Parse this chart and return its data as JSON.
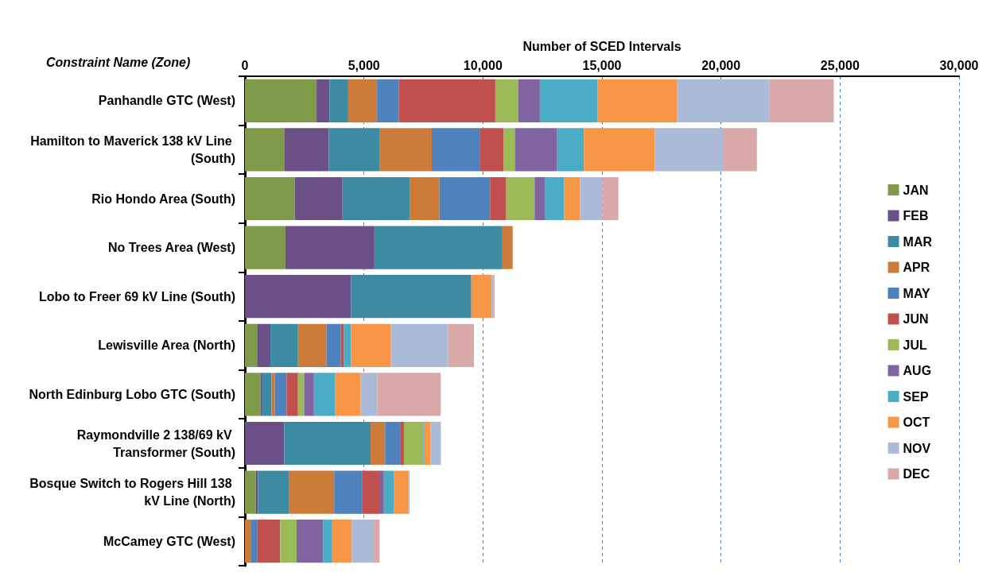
{
  "chart_data": {
    "type": "bar",
    "orientation": "horizontal",
    "stacked": true,
    "xlabel": "Number of SCED Intervals",
    "ylabel": "Constraint Name (Zone)",
    "categories": [
      "Panhandle GTC (West)",
      "Hamilton to Maverick 138 kV Line (South)",
      "Rio Hondo Area (South)",
      "No Trees Area (West)",
      "Lobo to Freer 69 kV Line (South)",
      "Lewisville Area (North)",
      "North Edinburg Lobo GTC (South)",
      "Raymondville 2 138/69 kV Transformer (South)",
      "Bosque Switch to Rogers Hill 138 kV Line (North)",
      "McCamey GTC (West)"
    ],
    "series": [
      {
        "name": "JAN",
        "color": "#7f9a48",
        "values": [
          3010,
          1650,
          2090,
          1700,
          0,
          510,
          650,
          0,
          460,
          0
        ]
      },
      {
        "name": "FEB",
        "color": "#6a5087",
        "values": [
          540,
          1870,
          2010,
          3740,
          4460,
          560,
          80,
          1650,
          90,
          0
        ]
      },
      {
        "name": "MAR",
        "color": "#3d8ba2",
        "values": [
          790,
          2130,
          2820,
          5380,
          5050,
          1160,
          390,
          3630,
          1290,
          0
        ]
      },
      {
        "name": "APR",
        "color": "#cd7b38",
        "values": [
          1210,
          2200,
          1250,
          430,
          0,
          1200,
          140,
          610,
          1910,
          240
        ]
      },
      {
        "name": "MAY",
        "color": "#4f81bd",
        "values": [
          920,
          2010,
          2130,
          0,
          0,
          600,
          490,
          630,
          1190,
          270
        ]
      },
      {
        "name": "JUN",
        "color": "#c0504d",
        "values": [
          4050,
          1000,
          680,
          0,
          0,
          130,
          480,
          160,
          740,
          970
        ]
      },
      {
        "name": "JUL",
        "color": "#9bbb59",
        "values": [
          970,
          480,
          1190,
          0,
          0,
          0,
          260,
          810,
          0,
          690
        ]
      },
      {
        "name": "AUG",
        "color": "#8064a2",
        "values": [
          900,
          1780,
          450,
          0,
          0,
          0,
          410,
          0,
          160,
          1110
        ]
      },
      {
        "name": "SEP",
        "color": "#4bacc6",
        "values": [
          2430,
          1120,
          790,
          0,
          0,
          300,
          880,
          50,
          430,
          390
        ]
      },
      {
        "name": "OCT",
        "color": "#f79646",
        "values": [
          3340,
          2980,
          670,
          0,
          850,
          1670,
          1080,
          250,
          580,
          820
        ]
      },
      {
        "name": "NOV",
        "color": "#aabad7",
        "values": [
          3880,
          2860,
          940,
          0,
          70,
          2400,
          700,
          440,
          70,
          890
        ]
      },
      {
        "name": "DEC",
        "color": "#d9a9a9",
        "values": [
          2700,
          1430,
          670,
          0,
          60,
          1090,
          2670,
          0,
          0,
          280
        ]
      }
    ],
    "xlim": [
      0,
      30000
    ],
    "xticks": [
      0,
      {
        "value": 5000,
        "label": "5,000"
      },
      {
        "value": 10000,
        "label": "10,000"
      },
      {
        "value": 15000,
        "label": "15,000"
      },
      {
        "value": 20000,
        "label": "20,000"
      },
      {
        "value": 25000,
        "label": "25,000"
      },
      {
        "value": 30000,
        "label": "30,000"
      }
    ],
    "grid": "x",
    "legend": "right"
  }
}
